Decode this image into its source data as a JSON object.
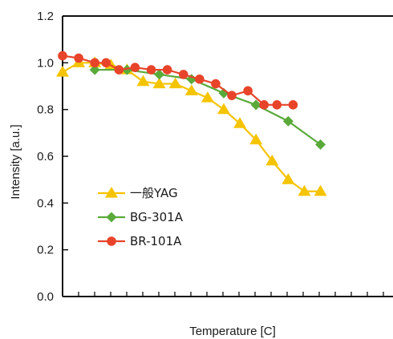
{
  "chart_data": {
    "type": "line",
    "title": "",
    "xlabel": "Temperature [C]",
    "ylabel": "Intensity [a.u.]",
    "xlim": [
      0,
      20.5
    ],
    "ylim": [
      0.0,
      1.2
    ],
    "y_ticks": [
      "0.0",
      "0.2",
      "0.4",
      "0.6",
      "0.8",
      "1.0",
      "1.2"
    ],
    "x_minor_ticks": 20,
    "grid": false,
    "legend_position": "lower-left",
    "series": [
      {
        "name": "一般YAG",
        "color": "#f5c400",
        "marker": "triangle",
        "x": [
          0,
          1,
          2,
          3,
          4,
          5,
          6,
          7,
          8,
          9,
          10,
          11,
          12,
          13,
          14,
          15,
          16
        ],
        "y": [
          0.96,
          1.0,
          1.0,
          0.99,
          0.97,
          0.92,
          0.91,
          0.91,
          0.88,
          0.85,
          0.8,
          0.74,
          0.67,
          0.58,
          0.5,
          0.45,
          0.45
        ]
      },
      {
        "name": "BG-301A",
        "color": "#5aaa3a",
        "marker": "diamond",
        "x": [
          2,
          4,
          6,
          8,
          10,
          12,
          14,
          16
        ],
        "y": [
          0.97,
          0.97,
          0.95,
          0.93,
          0.87,
          0.82,
          0.75,
          0.65
        ]
      },
      {
        "name": "BR-101A",
        "color": "#e8442a",
        "marker": "circle",
        "x": [
          0,
          1,
          2,
          2.7,
          3.5,
          4.5,
          5.5,
          6.5,
          7.5,
          8.5,
          9.5,
          10.5,
          11.5,
          12.5,
          13.3,
          14.3
        ],
        "y": [
          1.03,
          1.02,
          1.0,
          1.0,
          0.97,
          0.98,
          0.97,
          0.97,
          0.95,
          0.93,
          0.91,
          0.86,
          0.88,
          0.82,
          0.82,
          0.82
        ]
      }
    ]
  }
}
